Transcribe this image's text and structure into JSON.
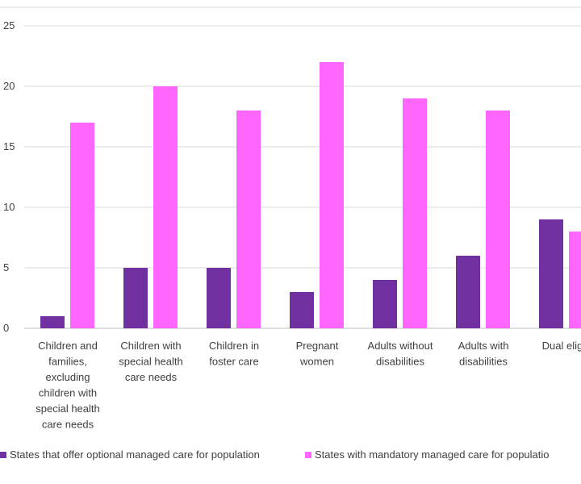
{
  "chart_data": {
    "type": "bar",
    "title": "",
    "xlabel": "",
    "ylabel": "",
    "ylim": [
      0,
      25
    ],
    "yticks": [
      "0",
      "5",
      "10",
      "15",
      "20",
      "25"
    ],
    "grid": true,
    "legend_position": "bottom",
    "categories": [
      "Children and families, excluding children with special health care needs",
      "Children with special health care needs",
      "Children in foster care",
      "Pregnant women",
      "Adults without disabilities",
      "Adults with disabilities",
      "Dual eligib"
    ],
    "category_lines": [
      [
        "Children and",
        "families,",
        "excluding",
        "children with",
        "special health",
        "care needs"
      ],
      [
        "Children with",
        "special health",
        "care needs"
      ],
      [
        "Children in",
        "foster care"
      ],
      [
        "Pregnant",
        "women"
      ],
      [
        "Adults without",
        "disabilities"
      ],
      [
        "Adults with",
        "disabilities"
      ],
      [
        "Dual eligib"
      ]
    ],
    "series": [
      {
        "name": "States that offer optional managed care for population",
        "color": "#7030a0",
        "values": [
          1,
          5,
          5,
          3,
          4,
          6,
          9
        ]
      },
      {
        "name": "States with mandatory managed care for populatio",
        "color": "#ff66ff",
        "values": [
          17,
          20,
          18,
          22,
          19,
          18,
          8
        ]
      }
    ]
  }
}
